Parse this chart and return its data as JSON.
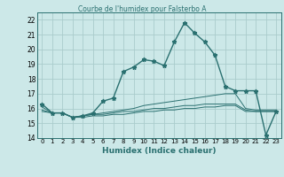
{
  "title": "Courbe de l'humidex pour Falsterbo A",
  "xlabel": "Humidex (Indice chaleur)",
  "background_color": "#cce8e8",
  "grid_color": "#aacccc",
  "line_color": "#2a7070",
  "xlim": [
    -0.5,
    23.5
  ],
  "ylim": [
    14,
    22.5
  ],
  "yticks": [
    14,
    15,
    16,
    17,
    18,
    19,
    20,
    21,
    22
  ],
  "xticks": [
    0,
    1,
    2,
    3,
    4,
    5,
    6,
    7,
    8,
    9,
    10,
    11,
    12,
    13,
    14,
    15,
    16,
    17,
    18,
    19,
    20,
    21,
    22,
    23
  ],
  "series": [
    {
      "x": [
        0,
        1,
        2,
        3,
        4,
        5,
        6,
        7,
        8,
        9,
        10,
        11,
        12,
        13,
        14,
        15,
        16,
        17,
        18,
        19,
        20,
        21,
        22,
        23
      ],
      "y": [
        16.3,
        15.7,
        15.7,
        15.4,
        15.5,
        15.7,
        16.5,
        16.7,
        18.5,
        18.8,
        19.3,
        19.2,
        18.9,
        20.5,
        21.8,
        21.1,
        20.5,
        19.6,
        17.5,
        17.2,
        17.2,
        17.2,
        14.2,
        15.8
      ],
      "color": "#2a7070",
      "marker": "*",
      "linewidth": 1.0,
      "markersize": 3.5
    },
    {
      "x": [
        0,
        1,
        2,
        3,
        4,
        5,
        6,
        7,
        8,
        9,
        10,
        11,
        12,
        13,
        14,
        15,
        16,
        17,
        18,
        19,
        20,
        21,
        22,
        23
      ],
      "y": [
        16.1,
        15.7,
        15.7,
        15.4,
        15.5,
        15.6,
        15.7,
        15.8,
        15.9,
        16.0,
        16.2,
        16.3,
        16.4,
        16.5,
        16.6,
        16.7,
        16.8,
        16.9,
        17.0,
        17.0,
        16.0,
        15.9,
        15.9,
        15.9
      ],
      "color": "#2a7070",
      "marker": null,
      "linewidth": 0.7
    },
    {
      "x": [
        0,
        1,
        2,
        3,
        4,
        5,
        6,
        7,
        8,
        9,
        10,
        11,
        12,
        13,
        14,
        15,
        16,
        17,
        18,
        19,
        20,
        21,
        22,
        23
      ],
      "y": [
        15.9,
        15.7,
        15.7,
        15.4,
        15.5,
        15.6,
        15.6,
        15.7,
        15.8,
        15.8,
        15.9,
        16.0,
        16.0,
        16.1,
        16.2,
        16.2,
        16.3,
        16.3,
        16.3,
        16.3,
        15.9,
        15.8,
        15.8,
        15.8
      ],
      "color": "#2a7070",
      "marker": null,
      "linewidth": 0.7
    },
    {
      "x": [
        0,
        1,
        2,
        3,
        4,
        5,
        6,
        7,
        8,
        9,
        10,
        11,
        12,
        13,
        14,
        15,
        16,
        17,
        18,
        19,
        20,
        21,
        22,
        23
      ],
      "y": [
        15.8,
        15.7,
        15.7,
        15.4,
        15.4,
        15.5,
        15.5,
        15.6,
        15.6,
        15.7,
        15.8,
        15.8,
        15.9,
        15.9,
        16.0,
        16.0,
        16.1,
        16.1,
        16.2,
        16.2,
        15.8,
        15.8,
        15.8,
        15.8
      ],
      "color": "#2a7070",
      "marker": null,
      "linewidth": 0.7
    }
  ]
}
